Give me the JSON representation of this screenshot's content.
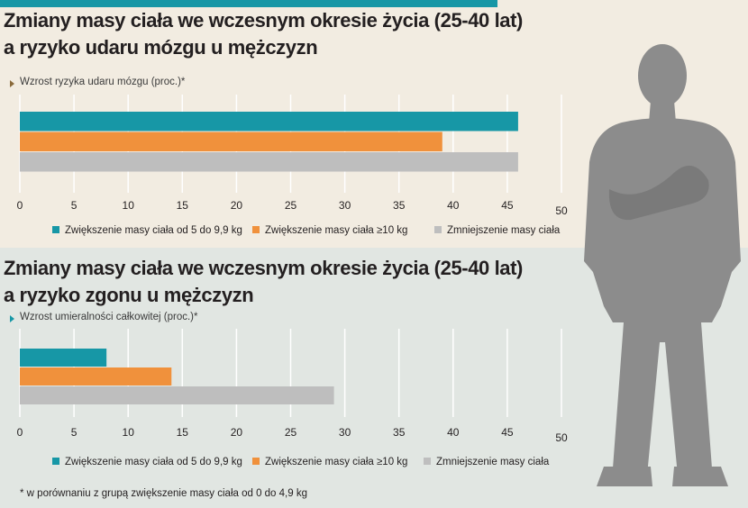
{
  "header": {
    "title_line1": "Zmiany masy ciała we wczesnym okresie życia (25-40 lat)",
    "title_line2": "a ryzyko udaru mózgu u mężczyzn"
  },
  "section2": {
    "title_line1": "Zmiany masy ciała we wczesnym okresie życia (25-40 lat)",
    "title_line2": "a ryzyko zgonu u mężczyzn"
  },
  "footnote": "* w porównaniu z grupą zwiększenie masy ciała od 0 do 4,9 kg",
  "colors": {
    "teal": "#1797a6",
    "orange": "#f0913c",
    "gray": "#bebebe",
    "accent": "#1797a6"
  },
  "chart_data": [
    {
      "type": "bar",
      "orientation": "horizontal",
      "subtitle": "Wzrost ryzyka udaru mózgu (proc.)*",
      "series": [
        {
          "name": "Zwiększenie masy ciała od 5 do 9,9 kg",
          "values": [
            46
          ]
        },
        {
          "name": "Zwiększenie masy ciała ≥10 kg",
          "values": [
            39
          ]
        },
        {
          "name": "Zmniejszenie masy ciała",
          "values": [
            46
          ]
        }
      ],
      "xlim": [
        0,
        50
      ],
      "xticks": [
        0,
        5,
        10,
        15,
        20,
        25,
        30,
        35,
        40,
        45,
        50
      ],
      "grid": true,
      "legend": "bottom"
    },
    {
      "type": "bar",
      "orientation": "horizontal",
      "subtitle": "Wzrost umieralności całkowitej (proc.)*",
      "series": [
        {
          "name": "Zwiększenie masy ciała od 5 do 9,9 kg",
          "values": [
            8
          ]
        },
        {
          "name": "Zwiększenie masy ciała ≥10 kg",
          "values": [
            14
          ]
        },
        {
          "name": "Zmniejszenie masy ciała",
          "values": [
            29
          ]
        }
      ],
      "xlim": [
        0,
        50
      ],
      "xticks": [
        0,
        5,
        10,
        15,
        20,
        25,
        30,
        35,
        40,
        45,
        50
      ],
      "grid": true,
      "legend": "bottom"
    }
  ]
}
